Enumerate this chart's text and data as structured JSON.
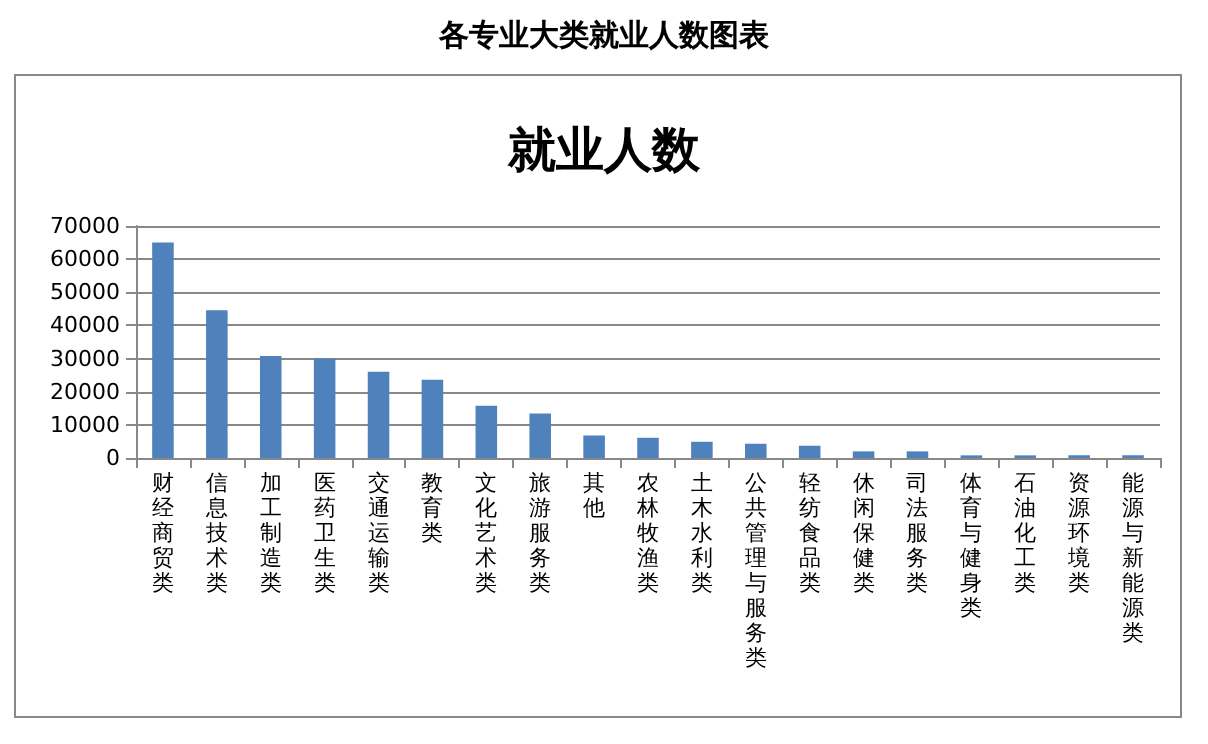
{
  "chart_data": {
    "type": "bar",
    "title": "各专业大类就业人数图表",
    "subtitle": "就业人数",
    "categories": [
      "财经商贸类",
      "信息技术类",
      "加工制造类",
      "医药卫生类",
      "交通运输类",
      "教育类",
      "文化艺术类",
      "旅游服务类",
      "其他",
      "农林牧渔类",
      "土木水利类",
      "公共管理与服务类",
      "轻纺食品类",
      "休闲保健类",
      "司法服务类",
      "体育与健身类",
      "石油化工类",
      "资源环境类",
      "能源与新能源类"
    ],
    "values": [
      65000,
      44600,
      30800,
      30000,
      26000,
      23600,
      15800,
      13400,
      6800,
      6100,
      4900,
      4300,
      3700,
      2000,
      2000,
      800,
      800,
      800,
      800
    ],
    "color": "#4f81bd",
    "ylim": [
      0,
      70000
    ],
    "yticks": [
      0,
      10000,
      20000,
      30000,
      40000,
      50000,
      60000,
      70000
    ],
    "grid": "y"
  }
}
